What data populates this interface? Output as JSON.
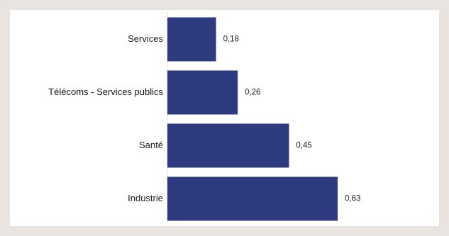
{
  "chart_data": {
    "type": "bar",
    "orientation": "horizontal",
    "categories": [
      "Services",
      "Télécoms - Services publics",
      "Santé",
      "Industrie"
    ],
    "values": [
      0.18,
      0.26,
      0.45,
      0.63
    ],
    "value_labels": [
      "0,18",
      "0,26",
      "0,45",
      "0,63"
    ],
    "xlim": [
      0,
      0.63
    ],
    "grid": false,
    "legend": "none",
    "bar_color": "#2e3a80"
  },
  "colors": {
    "background": "#e9e4df",
    "card": "#ffffff",
    "bar": "#2e3a80",
    "text": "#1a1a1a"
  }
}
